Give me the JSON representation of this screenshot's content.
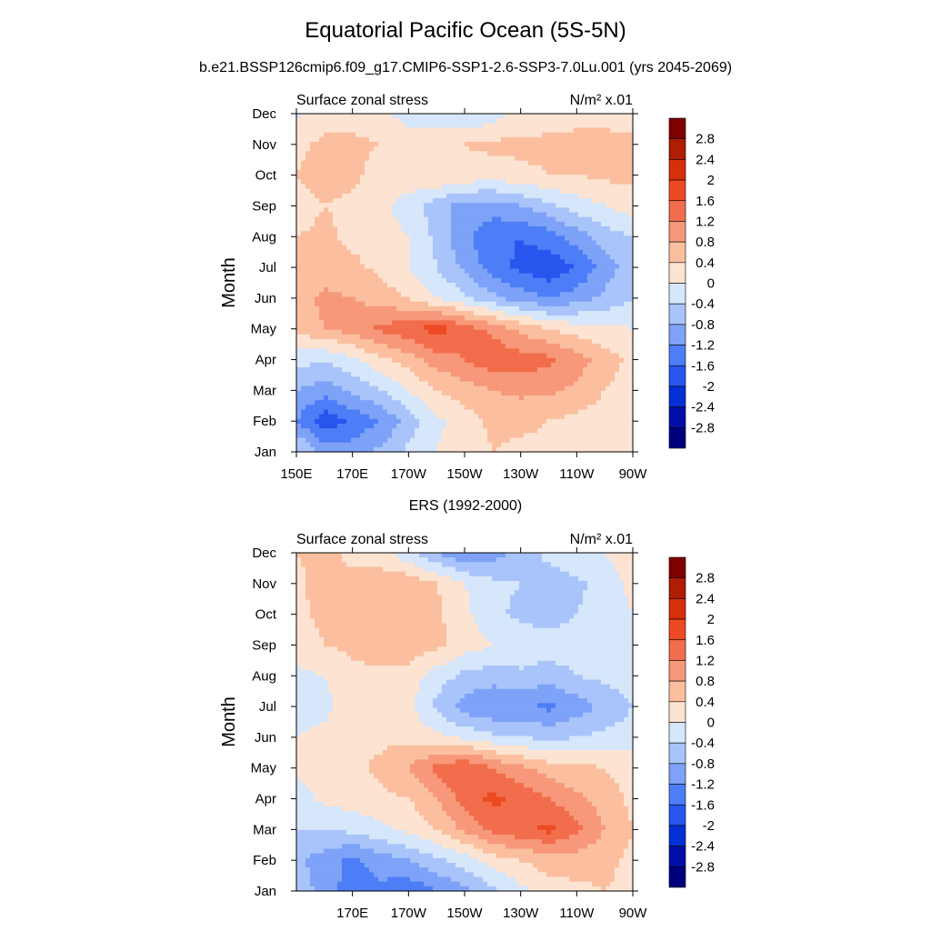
{
  "figure": {
    "title": "Equatorial Pacific Ocean (5S-5N)",
    "subtitle": "b.e21.BSSP126cmip6.f09_g17.CMIP6-SSP1-2.6-SSP3-7.0Lu.001 (yrs 2045-2069)"
  },
  "colors": {
    "levels": [
      "#00007f",
      "#0010a6",
      "#0530d4",
      "#2855ee",
      "#4d7ef7",
      "#7da2f7",
      "#a9c4fa",
      "#d6e6fb",
      "#fde3d1",
      "#fbbf9f",
      "#f7987a",
      "#f26d4c",
      "#ec4a22",
      "#d62f0a",
      "#ae1d04",
      "#7f0000"
    ]
  },
  "chart_data": [
    {
      "type": "heatmap",
      "panel_title": "",
      "left_label": "Surface zonal stress",
      "right_label": "N/m² x.01",
      "ylabel": "Month",
      "xticks": [
        "150E",
        "170E",
        "170W",
        "150W",
        "130W",
        "110W",
        "90W"
      ],
      "yticks": [
        "Jan",
        "Feb",
        "Mar",
        "Apr",
        "May",
        "Jun",
        "Jul",
        "Aug",
        "Sep",
        "Oct",
        "Nov",
        "Dec"
      ],
      "xlim": [
        150,
        270
      ],
      "colorbar_labels": [
        "2.8",
        "2.4",
        "2",
        "1.6",
        "1.2",
        "0.8",
        "0.4",
        "0",
        "-0.4",
        "-0.8",
        "-1.2",
        "-1.6",
        "-2",
        "-2.4",
        "-2.8"
      ],
      "field": {
        "lon": [
          150,
          160,
          170,
          180,
          190,
          200,
          210,
          220,
          230,
          240,
          250,
          260,
          270
        ],
        "rows": [
          [
            -0.3,
            -0.9,
            -1.0,
            -0.7,
            -0.3,
            0.0,
            0.2,
            0.4,
            0.3,
            0.3,
            0.2,
            0.2,
            0.1
          ],
          [
            -1.2,
            -1.9,
            -1.5,
            -1.2,
            -0.6,
            -0.1,
            0.2,
            0.5,
            0.5,
            0.4,
            0.3,
            0.2,
            0.1
          ],
          [
            -0.8,
            -1.0,
            -0.7,
            -0.4,
            0.0,
            0.4,
            0.6,
            0.8,
            0.9,
            0.9,
            0.7,
            0.4,
            0.2
          ],
          [
            -0.2,
            -0.4,
            -0.1,
            0.3,
            0.6,
            1.0,
            1.2,
            1.5,
            1.4,
            1.3,
            1.0,
            0.6,
            0.3
          ],
          [
            0.5,
            0.8,
            1.0,
            1.3,
            1.5,
            1.8,
            1.4,
            1.1,
            0.7,
            0.4,
            0.2,
            0.1,
            0.0
          ],
          [
            0.6,
            0.9,
            0.8,
            0.6,
            0.4,
            0.0,
            -0.3,
            -0.7,
            -1.0,
            -1.2,
            -1.0,
            -0.7,
            -0.4
          ],
          [
            0.5,
            0.6,
            0.5,
            0.3,
            0.0,
            -0.4,
            -0.9,
            -1.4,
            -1.7,
            -1.9,
            -1.6,
            -1.0,
            -0.6
          ],
          [
            0.4,
            0.5,
            0.3,
            0.2,
            0.0,
            -0.5,
            -1.1,
            -1.5,
            -1.6,
            -1.4,
            -1.0,
            -0.6,
            -0.4
          ],
          [
            0.2,
            0.4,
            0.3,
            0.1,
            -0.2,
            -0.6,
            -1.0,
            -1.0,
            -0.8,
            -0.5,
            -0.2,
            0.0,
            0.2
          ],
          [
            0.4,
            0.6,
            0.5,
            0.2,
            0.3,
            0.4,
            0.3,
            0.2,
            0.3,
            0.4,
            0.4,
            0.5,
            0.5
          ],
          [
            0.3,
            0.5,
            0.5,
            0.4,
            0.3,
            0.3,
            0.4,
            0.5,
            0.5,
            0.5,
            0.5,
            0.5,
            0.5
          ],
          [
            -0.1,
            0.2,
            0.2,
            0.1,
            -0.2,
            -0.3,
            -0.4,
            -0.2,
            0.1,
            0.2,
            0.3,
            0.3,
            0.2
          ]
        ]
      }
    },
    {
      "type": "heatmap",
      "panel_title": "ERS (1992-2000)",
      "left_label": "Surface zonal stress",
      "right_label": "N/m² x.01",
      "ylabel": "Month",
      "xticks": [
        "170E",
        "170W",
        "150W",
        "130W",
        "110W",
        "90W"
      ],
      "yticks": [
        "Jan",
        "Feb",
        "Mar",
        "Apr",
        "May",
        "Jun",
        "Jul",
        "Aug",
        "Sep",
        "Oct",
        "Nov",
        "Dec"
      ],
      "xlim": [
        150,
        270
      ],
      "colorbar_labels": [
        "2.8",
        "2.4",
        "2",
        "1.6",
        "1.2",
        "0.8",
        "0.4",
        "0",
        "-0.4",
        "-0.8",
        "-1.2",
        "-1.6",
        "-2",
        "-2.4",
        "-2.8"
      ],
      "field": {
        "lon": [
          150,
          160,
          170,
          180,
          190,
          200,
          210,
          220,
          230,
          240,
          250,
          260,
          270
        ],
        "rows": [
          [
            -0.5,
            -1.0,
            -1.4,
            -1.3,
            -1.5,
            -1.2,
            -0.9,
            -0.5,
            -0.1,
            0.2,
            0.3,
            0.4,
            0.3
          ],
          [
            -0.7,
            -1.0,
            -1.3,
            -1.0,
            -0.8,
            -0.5,
            -0.2,
            0.2,
            0.4,
            0.6,
            0.6,
            0.5,
            0.3
          ],
          [
            -0.4,
            -0.4,
            -0.3,
            -0.1,
            0.1,
            0.4,
            0.9,
            1.3,
            1.5,
            1.7,
            1.3,
            0.8,
            0.4
          ],
          [
            -0.2,
            0.1,
            0.2,
            0.3,
            0.4,
            0.8,
            1.4,
            1.7,
            1.5,
            1.2,
            0.9,
            0.6,
            0.3
          ],
          [
            0.1,
            0.2,
            0.3,
            0.5,
            0.8,
            1.3,
            1.6,
            1.2,
            0.9,
            0.6,
            0.5,
            0.4,
            0.2
          ],
          [
            0.0,
            0.1,
            0.2,
            0.3,
            0.3,
            0.1,
            -0.1,
            -0.3,
            -0.4,
            -0.5,
            -0.4,
            -0.3,
            -0.2
          ],
          [
            -0.2,
            -0.1,
            0.2,
            0.2,
            0.1,
            -0.5,
            -1.0,
            -1.2,
            -1.1,
            -1.3,
            -1.0,
            -0.7,
            -0.4
          ],
          [
            -0.1,
            0.0,
            0.3,
            0.3,
            0.2,
            -0.2,
            -0.5,
            -0.6,
            -0.5,
            -0.6,
            -0.4,
            -0.3,
            -0.2
          ],
          [
            0.2,
            0.4,
            0.5,
            0.6,
            0.7,
            0.5,
            0.2,
            0.0,
            -0.1,
            -0.2,
            -0.2,
            -0.1,
            0.0
          ],
          [
            0.3,
            0.5,
            0.5,
            0.6,
            0.6,
            0.5,
            0.1,
            -0.3,
            -0.5,
            -0.6,
            -0.4,
            -0.2,
            0.0
          ],
          [
            0.3,
            0.6,
            0.5,
            0.6,
            0.7,
            0.4,
            0.0,
            -0.3,
            -0.4,
            -0.6,
            -0.5,
            -0.2,
            0.1
          ],
          [
            0.4,
            0.5,
            0.3,
            0.2,
            -0.3,
            -0.8,
            -1.2,
            -1.0,
            -0.6,
            -0.3,
            -0.1,
            0.0,
            0.2
          ]
        ]
      }
    }
  ]
}
